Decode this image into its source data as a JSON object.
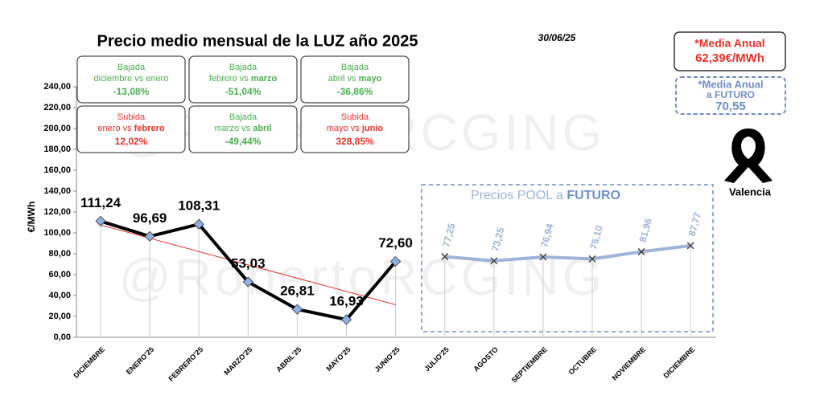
{
  "chart_data": {
    "type": "line",
    "title": "Precio medio mensual de la LUZ año 2025",
    "date": "30/06/25",
    "watermark": "@RobertoRCGING",
    "ylabel": "€/MWh",
    "categories": [
      "DICIEMBRE",
      "ENERO'25",
      "FEBRERO'25",
      "MARZO'25",
      "ABRIL'25",
      "MAYO'25",
      "JUNIO'25",
      "JULIO'25",
      "AGOSTO",
      "SEPTIEMBRE",
      "OCTUBRE",
      "NOVIEMBRE",
      "DICIEMBRE"
    ],
    "series": [
      {
        "color": "#000000",
        "marker_color": "#8fb0e0",
        "values": [
          111.24,
          96.69,
          108.31,
          53.03,
          26.81,
          16.93,
          72.6,
          null,
          null,
          null,
          null,
          null,
          null
        ],
        "value_labels": [
          "111,24",
          "96,69",
          "108,31",
          "53,03",
          "26,81",
          "16,93",
          "72,60",
          null,
          null,
          null,
          null,
          null,
          null
        ]
      },
      {
        "color": "#9db3d9",
        "marker_color": "#444444",
        "values": [
          null,
          null,
          null,
          null,
          null,
          null,
          null,
          77.25,
          73.25,
          76.94,
          75.1,
          81.96,
          87.77
        ],
        "value_labels": [
          null,
          null,
          null,
          null,
          null,
          null,
          null,
          "77,25",
          "73,25",
          "76,94",
          "75,10",
          "81,96",
          "87,77"
        ]
      }
    ],
    "trendline_color": "#e8322a",
    "ylim": [
      0,
      240
    ],
    "yticks": [
      {
        "value": 0,
        "label": "0,00"
      },
      {
        "value": 20,
        "label": "20,00"
      },
      {
        "value": 40,
        "label": "40,00"
      },
      {
        "value": 60,
        "label": "60,00"
      },
      {
        "value": 80,
        "label": "80,00"
      },
      {
        "value": 100,
        "label": "100,00"
      },
      {
        "value": 120,
        "label": "120,00"
      },
      {
        "value": 140,
        "label": "140,00"
      },
      {
        "value": 160,
        "label": "160,00"
      },
      {
        "value": 180,
        "label": "180,00"
      },
      {
        "value": 200,
        "label": "200,00"
      },
      {
        "value": 220,
        "label": "220,00"
      },
      {
        "value": 240,
        "label": "240,00"
      }
    ],
    "future_panel_title": [
      "Precios POOL a ",
      "FUTURO"
    ],
    "boxes": [
      {
        "kind": "Bajada",
        "parts": [
          "diciembre vs enero"
        ],
        "pct": "-13,08%",
        "color": "#4caf50"
      },
      {
        "kind": "Bajada",
        "parts": [
          "febrero vs ",
          "marzo"
        ],
        "pct": "-51,04%",
        "color": "#4caf50"
      },
      {
        "kind": "Bajada",
        "parts": [
          "abril vs ",
          "mayo"
        ],
        "pct": "-36,86%",
        "color": "#4caf50"
      },
      {
        "kind": "Subida",
        "parts": [
          "enero vs ",
          "febrero"
        ],
        "pct": "12,02%",
        "color": "#e8322a"
      },
      {
        "kind": "Bajada",
        "parts": [
          "marzo vs ",
          "abril"
        ],
        "pct": "-49,44%",
        "color": "#4caf50"
      },
      {
        "kind": "Subida",
        "parts": [
          "mayo vs ",
          "junio"
        ],
        "pct": "328,85%",
        "color": "#e8322a"
      }
    ],
    "annual_mean": {
      "lines": [
        "*Media Anual",
        "62,39€/MWh"
      ],
      "color": "#e8322a"
    },
    "future_mean": {
      "lines": [
        "*Media Anual",
        "a FUTURO",
        "70,55"
      ],
      "color": "#6f8fc7"
    },
    "mourning_label": "Valencia"
  }
}
